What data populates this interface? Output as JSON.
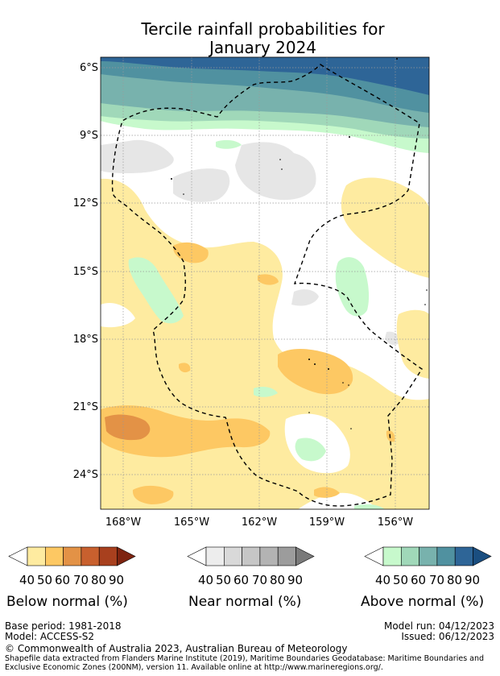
{
  "title": {
    "line1": "Tercile rainfall probabilities for",
    "line2": "January 2024"
  },
  "map": {
    "lat_labels": [
      "6°S",
      "9°S",
      "12°S",
      "15°S",
      "18°S",
      "21°S",
      "24°S"
    ],
    "lon_labels": [
      "168°W",
      "165°W",
      "162°W",
      "159°W",
      "156°W"
    ]
  },
  "legends": [
    {
      "name": "Below normal (%)",
      "ticks": [
        "40",
        "50",
        "60",
        "70",
        "80",
        "90"
      ],
      "colors": [
        "#ffffff",
        "#feeba0",
        "#fdc863",
        "#e39246",
        "#c8602e",
        "#a8401e",
        "#7e2410"
      ]
    },
    {
      "name": "Near normal (%)",
      "ticks": [
        "40",
        "50",
        "60",
        "70",
        "80",
        "90"
      ],
      "colors": [
        "#ffffff",
        "#ededed",
        "#d9d9d9",
        "#c6c6c6",
        "#b3b3b3",
        "#9c9c9c",
        "#7a7a7a"
      ]
    },
    {
      "name": "Above normal (%)",
      "ticks": [
        "40",
        "50",
        "60",
        "70",
        "80",
        "90"
      ],
      "colors": [
        "#ffffff",
        "#c7f9cc",
        "#a0d8b9",
        "#78b2ad",
        "#5091a0",
        "#2e6597",
        "#1a4e80"
      ]
    }
  ],
  "footer": {
    "base_period": "Base period: 1981-2018",
    "model": "Model: ACCESS-S2",
    "model_run": "Model run: 04/12/2023",
    "issued": "Issued: 06/12/2023",
    "copyright": "© Commonwealth of Australia 2023, Australian Bureau of Meteorology",
    "shapefile_line1": "Shapefile data extracted from Flanders Marine Institute (2019), Maritime Boundaries Geodatabase: Maritime Boundaries and",
    "shapefile_line2": "Exclusive Economic Zones (200NM), version 11. Available online at http://www.marineregions.org/."
  }
}
